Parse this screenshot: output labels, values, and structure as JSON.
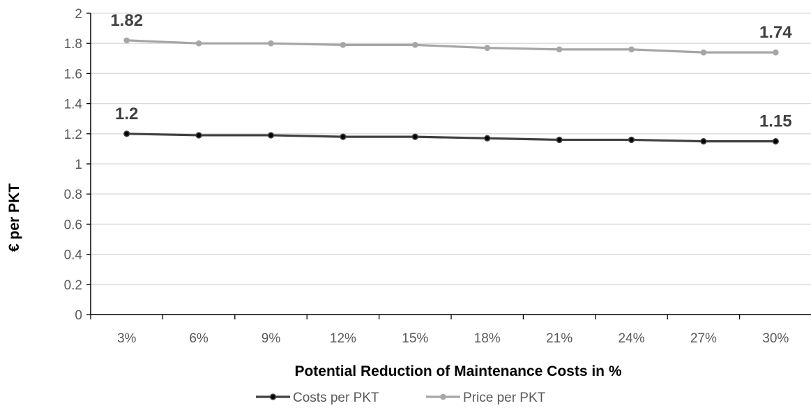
{
  "chart_data": {
    "type": "line",
    "title": "",
    "xlabel": "Potential Reduction of Maintenance Costs in %",
    "ylabel": "€ per PKT",
    "categories": [
      "3%",
      "6%",
      "9%",
      "12%",
      "15%",
      "18%",
      "21%",
      "24%",
      "27%",
      "30%"
    ],
    "ylim": [
      0,
      2
    ],
    "yticks": [
      "0",
      "0.2",
      "0.4",
      "0.6",
      "0.8",
      "1",
      "1.2",
      "1.4",
      "1.6",
      "1.8",
      "2"
    ],
    "grid": true,
    "legend_position": "bottom",
    "series": [
      {
        "name": "Costs per PKT",
        "color": "#404040",
        "values": [
          1.2,
          1.19,
          1.19,
          1.18,
          1.18,
          1.17,
          1.16,
          1.16,
          1.15,
          1.15
        ],
        "data_labels": [
          {
            "index": 0,
            "text": "1.2"
          },
          {
            "index": 9,
            "text": "1.15"
          }
        ]
      },
      {
        "name": "Price per PKT",
        "color": "#a6a6a6",
        "values": [
          1.82,
          1.8,
          1.8,
          1.79,
          1.79,
          1.77,
          1.76,
          1.76,
          1.74,
          1.74
        ],
        "data_labels": [
          {
            "index": 0,
            "text": "1.82"
          },
          {
            "index": 9,
            "text": "1.74"
          }
        ]
      }
    ]
  }
}
